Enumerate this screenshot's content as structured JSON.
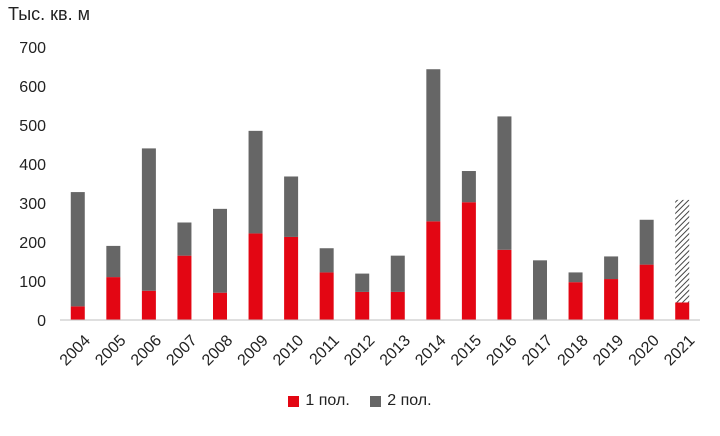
{
  "chart_data": {
    "type": "bar",
    "stacked": true,
    "ylabel": "Тыс. кв. м",
    "ylim": [
      0,
      700
    ],
    "yticks": [
      0,
      100,
      200,
      300,
      400,
      500,
      600,
      700
    ],
    "grid": false,
    "legend_position": "bottom-center",
    "categories": [
      "2004",
      "2005",
      "2006",
      "2007",
      "2008",
      "2009",
      "2010",
      "2011",
      "2012",
      "2013",
      "2014",
      "2015",
      "2016",
      "2017",
      "2018",
      "2019",
      "2020",
      "2021"
    ],
    "series": [
      {
        "name": "1 пол.",
        "color": "#e30613",
        "values": [
          35,
          110,
          75,
          165,
          70,
          222,
          213,
          122,
          72,
          72,
          253,
          302,
          180,
          0,
          97,
          105,
          142,
          45
        ]
      },
      {
        "name": "2 пол.",
        "color": "#666666",
        "values": [
          293,
          80,
          365,
          85,
          215,
          263,
          155,
          62,
          47,
          93,
          390,
          80,
          342,
          153,
          25,
          58,
          115,
          263
        ],
        "hatched_last": true
      }
    ]
  }
}
